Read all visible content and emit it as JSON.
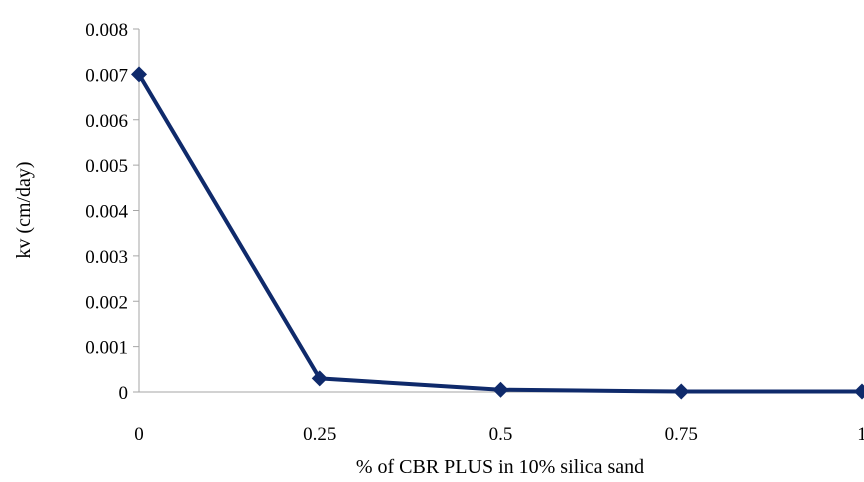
{
  "chart_data": {
    "type": "line",
    "title": "",
    "xlabel": "% of CBR PLUS in 10% silica sand",
    "ylabel": "kv (cm/day)",
    "x": [
      0,
      0.25,
      0.5,
      0.75,
      1
    ],
    "x_tick_labels": [
      "0",
      "0.25",
      "0.5",
      "0.75",
      "1"
    ],
    "y_tick_labels": [
      "0",
      "0.001",
      "0.002",
      "0.003",
      "0.004",
      "0.005",
      "0.006",
      "0.007",
      "0.008"
    ],
    "ylim": [
      0,
      0.008
    ],
    "xlim": [
      0,
      1
    ],
    "grid": false,
    "legend": "none",
    "series": [
      {
        "values": [
          0.007,
          0.0003,
          5e-05,
          1e-05,
          1e-05
        ],
        "color": "#0f2a6b",
        "marker": "diamond"
      }
    ],
    "axis_color": "#a6a6a6"
  }
}
